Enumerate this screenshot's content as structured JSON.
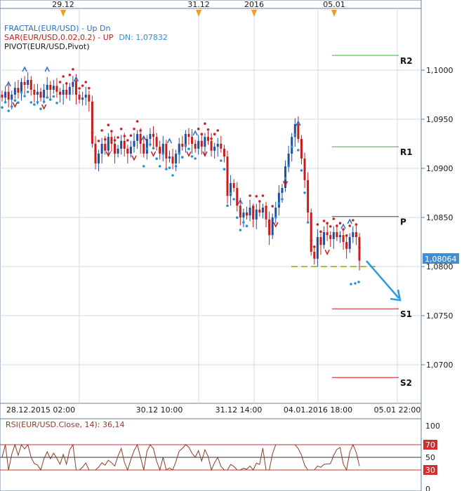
{
  "colors": {
    "grid": "#d0d8e8",
    "axis": "#6a7f9a",
    "text": "#1a1a1a",
    "bull": "#1f4fa0",
    "bear": "#c81c1c",
    "sar_up": "#d42020",
    "sar_dn": "#2b8fd8",
    "fractal_up": "#2b6fc4",
    "fractal_dn": "#c81c1c",
    "pivot_r": "#2eb82e",
    "pivot_p": "#555555",
    "pivot_s": "#cc1111",
    "price_label_bg": "#3f8fd2",
    "dashed_line": "#a6c230",
    "arrow": "#2b9de0",
    "rsi_line": "#8b3c2a",
    "rsi_level": "#cc3333",
    "rsi_mid": "#333333",
    "rsi_label_bg": "#d23030",
    "legend_fractal": "#2b6fc4",
    "legend_sar": "#c81c1c",
    "legend_sar_dn": "#2b8fd8",
    "legend_pivot": "#1a1a1a"
  },
  "legend": {
    "fractal": "FRACTAL(EUR/USD)  -  Up  Dn",
    "sar_label": "SAR(EUR/USD,0.02,0.2)  -  UP",
    "sar_dn": "DN: 1,07832",
    "pivot": "PIVOT(EUR/USD,Pivot)"
  },
  "top_axis": {
    "labels": [
      "29.12",
      "31.12",
      "2016",
      "05.01"
    ]
  },
  "bottom_axis": {
    "labels": [
      "28.12.2015 02:00",
      "30.12 10:00",
      "31.12 14:00",
      "04.01.2016 18:00",
      "05.01 22:00"
    ]
  },
  "price_axis": {
    "ticks": [
      "1,1000",
      "1,0950",
      "1,0900",
      "1,0850",
      "1,0800",
      "1,0750",
      "1,0700"
    ],
    "current": "1,08064"
  },
  "pivot_labels": [
    "R2",
    "R1",
    "P",
    "S1",
    "S2"
  ],
  "rsi": {
    "legend": "RSI(EUR/USD.Close, 14): 36,14",
    "ticks": [
      "100",
      "70",
      "50",
      "30",
      "0"
    ]
  },
  "chart_data": {
    "type": "line",
    "title": "",
    "instrument": "EUR/USD",
    "price_range": [
      1.0675,
      1.1035
    ],
    "price_ticks": [
      1.1,
      1.095,
      1.09,
      1.085,
      1.08,
      1.075,
      1.07
    ],
    "current_price": 1.08064,
    "pivot_levels": {
      "R2": 1.1015,
      "R1": 1.0922,
      "P": 1.0851,
      "S1": 1.0757,
      "S2": 1.0687
    },
    "sar_dn": 1.07832,
    "closes": [
      1.0972,
      1.0978,
      1.097,
      1.0975,
      1.0982,
      1.0977,
      1.0988,
      1.0985,
      1.099,
      1.098,
      1.0975,
      1.0978,
      1.0972,
      1.098,
      1.0985,
      1.098,
      1.0984,
      1.0978,
      1.0975,
      1.098,
      1.0975,
      1.0983,
      1.0988,
      1.0975,
      1.097,
      1.0972,
      1.0975,
      1.0968,
      1.0925,
      1.0905,
      1.0915,
      1.0925,
      1.0918,
      1.0932,
      1.0925,
      1.0915,
      1.092,
      1.0928,
      1.092,
      1.0915,
      1.0922,
      1.0928,
      1.0935,
      1.0925,
      1.0915,
      1.093,
      1.0935,
      1.0932,
      1.0922,
      1.0915,
      1.0925,
      1.091,
      1.0912,
      1.0905,
      1.0915,
      1.0925,
      1.0922,
      1.0935,
      1.0932,
      1.0925,
      1.092,
      1.0928,
      1.0922,
      1.0932,
      1.0928,
      1.0918,
      1.0922,
      1.0925,
      1.092,
      1.0912,
      1.0872,
      1.0885,
      1.088,
      1.0862,
      1.085,
      1.0855,
      1.0852,
      1.086,
      1.0848,
      1.0858,
      1.0855,
      1.086,
      1.0848,
      1.0832,
      1.085,
      1.086,
      1.0875,
      1.088,
      1.0902,
      1.0915,
      1.0932,
      1.0945,
      1.093,
      1.091,
      1.0888,
      1.0855,
      1.0815,
      1.0808,
      1.083,
      1.0822,
      1.0835,
      1.0832,
      1.0828,
      1.0835,
      1.083,
      1.0832,
      1.0825,
      1.0818,
      1.083,
      1.0835,
      1.083,
      1.0806
    ],
    "rsi_levels": [
      70,
      50,
      30
    ],
    "rsi_last": 36.14
  }
}
